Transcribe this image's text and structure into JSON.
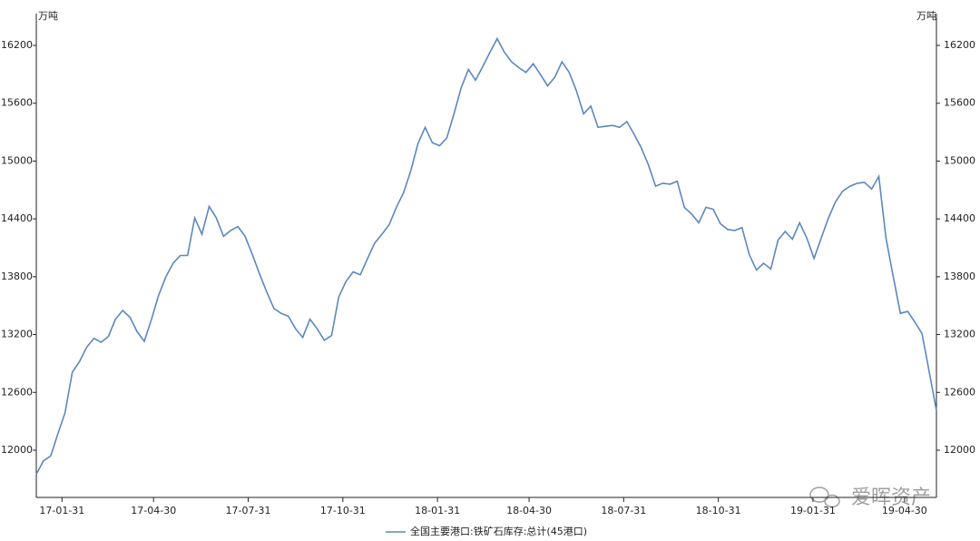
{
  "chart_data": {
    "type": "line",
    "y_label": "万吨",
    "watermark": "爱晖资产",
    "x": [
      "17-01-06",
      "17-01-13",
      "17-01-20",
      "17-01-27",
      "17-02-03",
      "17-02-10",
      "17-02-17",
      "17-02-24",
      "17-03-03",
      "17-03-10",
      "17-03-17",
      "17-03-24",
      "17-03-31",
      "17-04-07",
      "17-04-14",
      "17-04-21",
      "17-04-28",
      "17-05-05",
      "17-05-12",
      "17-05-19",
      "17-05-26",
      "17-06-02",
      "17-06-09",
      "17-06-16",
      "17-06-23",
      "17-06-30",
      "17-07-07",
      "17-07-14",
      "17-07-21",
      "17-07-28",
      "17-08-04",
      "17-08-11",
      "17-08-18",
      "17-08-25",
      "17-09-01",
      "17-09-08",
      "17-09-15",
      "17-09-22",
      "17-09-29",
      "17-10-06",
      "17-10-13",
      "17-10-20",
      "17-10-27",
      "17-11-03",
      "17-11-10",
      "17-11-17",
      "17-11-24",
      "17-12-01",
      "17-12-08",
      "17-12-15",
      "17-12-22",
      "17-12-29",
      "18-01-05",
      "18-01-12",
      "18-01-19",
      "18-01-26",
      "18-02-02",
      "18-02-09",
      "18-02-16",
      "18-02-23",
      "18-03-02",
      "18-03-09",
      "18-03-16",
      "18-03-23",
      "18-03-30",
      "18-04-06",
      "18-04-13",
      "18-04-20",
      "18-04-27",
      "18-05-04",
      "18-05-11",
      "18-05-18",
      "18-05-25",
      "18-06-01",
      "18-06-08",
      "18-06-15",
      "18-06-22",
      "18-06-29",
      "18-07-06",
      "18-07-13",
      "18-07-20",
      "18-07-27",
      "18-08-03",
      "18-08-10",
      "18-08-17",
      "18-08-24",
      "18-08-31",
      "18-09-07",
      "18-09-14",
      "18-09-21",
      "18-09-28",
      "18-10-05",
      "18-10-12",
      "18-10-19",
      "18-10-26",
      "18-11-02",
      "18-11-09",
      "18-11-16",
      "18-11-23",
      "18-11-30",
      "18-12-07",
      "18-12-14",
      "18-12-21",
      "18-12-28",
      "19-01-04",
      "19-01-11",
      "19-01-18",
      "19-01-25",
      "19-02-01",
      "19-02-08",
      "19-02-15",
      "19-02-22",
      "19-03-01",
      "19-03-08",
      "19-03-15",
      "19-03-22",
      "19-03-29",
      "19-04-05",
      "19-04-12",
      "19-04-19",
      "19-04-26",
      "19-05-03",
      "19-05-10",
      "19-05-17",
      "19-05-24",
      "19-05-31"
    ],
    "series": [
      {
        "name": "全国主要港口:铁矿石库存:总计(45港口)",
        "color": "#5b87c0",
        "values": [
          11750,
          11890,
          11940,
          12170,
          12390,
          12810,
          12920,
          13070,
          13160,
          13120,
          13180,
          13360,
          13450,
          13380,
          13230,
          13130,
          13360,
          13610,
          13800,
          13940,
          14020,
          14020,
          14410,
          14240,
          14530,
          14410,
          14220,
          14280,
          14320,
          14220,
          14030,
          13830,
          13640,
          13470,
          13420,
          13390,
          13260,
          13170,
          13360,
          13260,
          13140,
          13190,
          13590,
          13750,
          13850,
          13820,
          13990,
          14150,
          14240,
          14340,
          14520,
          14670,
          14900,
          15180,
          15350,
          15190,
          15160,
          15240,
          15490,
          15760,
          15950,
          15840,
          15980,
          16130,
          16270,
          16130,
          16030,
          15970,
          15920,
          16010,
          15900,
          15780,
          15870,
          16030,
          15920,
          15730,
          15490,
          15570,
          15350,
          15360,
          15370,
          15350,
          15410,
          15280,
          15140,
          14960,
          14740,
          14770,
          14760,
          14790,
          14520,
          14450,
          14360,
          14520,
          14500,
          14350,
          14290,
          14280,
          14310,
          14030,
          13870,
          13940,
          13880,
          14180,
          14270,
          14190,
          14360,
          14200,
          13990,
          14200,
          14410,
          14580,
          14690,
          14740,
          14770,
          14780,
          14710,
          14840,
          14200,
          13800,
          13420,
          13440,
          13330,
          13210,
          12810,
          12410
        ]
      }
    ],
    "xlim": [
      "17-01-06",
      "19-05-31"
    ],
    "xticks": [
      "17-01-31",
      "17-04-30",
      "17-07-31",
      "17-10-31",
      "18-01-31",
      "18-04-30",
      "18-07-31",
      "18-10-31",
      "19-01-31",
      "19-04-30"
    ],
    "ylim": [
      11510,
      16530
    ],
    "yticks": [
      12000,
      12600,
      13200,
      13800,
      14400,
      15000,
      15600,
      16200
    ],
    "grid": false,
    "legend": "bottom"
  }
}
